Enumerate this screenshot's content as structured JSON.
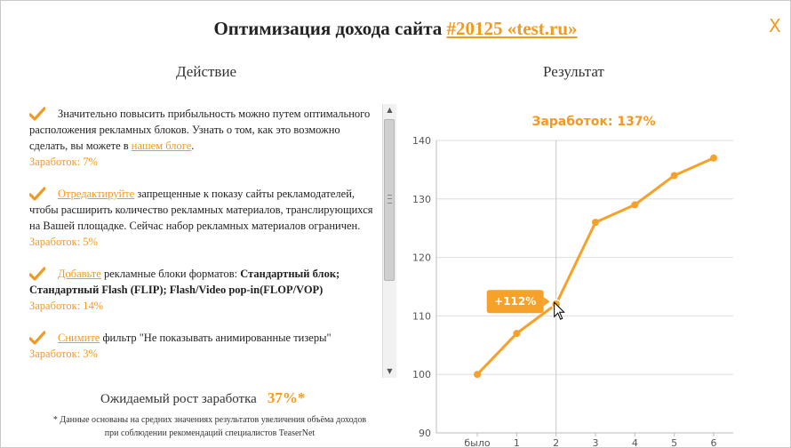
{
  "header": {
    "title_prefix": "Оптимизация дохода сайта",
    "site_link": "#20125 «test.ru»",
    "close_label": "X"
  },
  "columns": {
    "action_title": "Действие",
    "result_title": "Результат"
  },
  "actions": [
    {
      "link": "",
      "text_before": "Значительно повысить прибыльность можно путем оптимального расположения рекламных блоков. Узнать о том, как это возможно сделать, вы можете в ",
      "link_inline": "нашем блоге",
      "text_after": ".",
      "earning": "Заработок: 7%"
    },
    {
      "link": "Отредактируйте",
      "text_after": " запрещенные к показу сайты рекламодателей, чтобы расширить количество рекламных материалов, транслирующихся на Вашей площадке. Сейчас набор рекламных материалов ограничен.",
      "earning": "Заработок: 5%"
    },
    {
      "link": "Добавьте",
      "text_after": " рекламные блоки форматов: ",
      "bold": "Стандартный блок; Стандартный Flash (FLIP); Flash/Video pop-in(FLOP/VOP)",
      "earning": "Заработок: 14%"
    },
    {
      "link": "Снимите",
      "text_after": " фильтр \"Не показывать анимированные тизеры\"",
      "earning": "Заработок: 3%"
    }
  ],
  "expected": {
    "label": "Ожидаемый рост заработка",
    "value": "37%*"
  },
  "footnote": {
    "line1": "* Данные основаны на средних значениях результатов увеличения объёма доходов",
    "line2": "при соблюдении рекомендаций специалистов TeaserNet"
  },
  "colors": {
    "accent": "#f29a1f",
    "line": "#f5a12a",
    "grid": "#dddddd"
  },
  "chart_data": {
    "type": "line",
    "title": "Заработок: 137%",
    "categories": [
      "было",
      "1",
      "2",
      "3",
      "4",
      "5",
      "6"
    ],
    "series": [
      {
        "values": [
          100,
          107,
          112,
          126,
          129,
          134,
          137
        ]
      }
    ],
    "ylim": [
      90,
      140
    ],
    "yticks": [
      90,
      100,
      110,
      120,
      130,
      140
    ],
    "tooltip": {
      "category": "2",
      "label": "+112%"
    },
    "grid": true
  }
}
